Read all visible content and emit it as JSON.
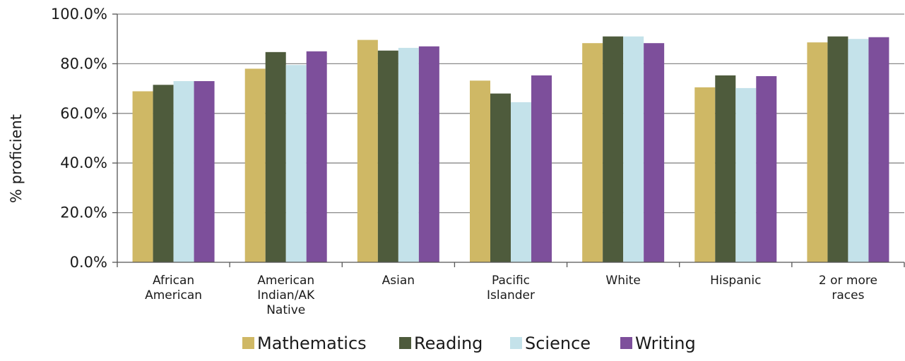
{
  "chart_data": {
    "type": "bar",
    "ylabel": "% proficient",
    "ylim": [
      0,
      100
    ],
    "yticks": [
      "0.0%",
      "20.0%",
      "40.0%",
      "60.0%",
      "80.0%",
      "100.0%"
    ],
    "grid": true,
    "legend_position": "bottom",
    "categories": [
      [
        "African",
        "American"
      ],
      [
        "American",
        "Indian/AK",
        "Native"
      ],
      [
        "Asian"
      ],
      [
        "Pacific",
        "Islander"
      ],
      [
        "White"
      ],
      [
        "Hispanic"
      ],
      [
        "2 or more",
        "races"
      ]
    ],
    "series": [
      {
        "name": "Mathematics",
        "color": "#cfb865",
        "values": [
          68.9,
          78.0,
          89.6,
          73.2,
          88.3,
          70.5,
          88.6
        ]
      },
      {
        "name": "Reading",
        "color": "#4e5b3c",
        "values": [
          71.5,
          84.7,
          85.3,
          68.0,
          91.0,
          75.3,
          91.0
        ]
      },
      {
        "name": "Science",
        "color": "#c4e2ea",
        "values": [
          73.0,
          79.5,
          86.4,
          64.5,
          91.0,
          70.2,
          90.0
        ]
      },
      {
        "name": "Writing",
        "color": "#7d4f9b",
        "values": [
          73.0,
          85.0,
          87.0,
          75.3,
          88.3,
          75.0,
          90.7
        ]
      }
    ]
  }
}
